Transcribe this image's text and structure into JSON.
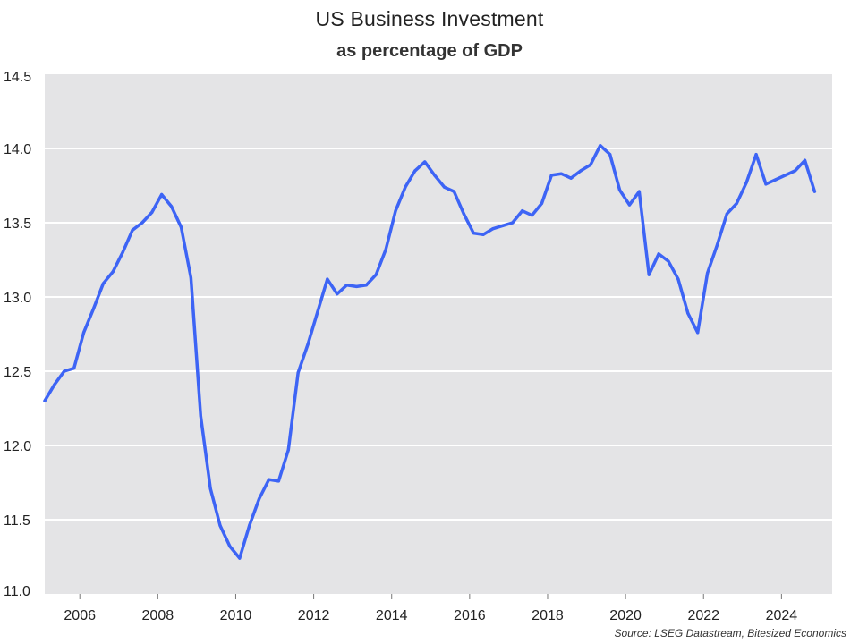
{
  "chart_data": {
    "type": "line",
    "title": "US Business Investment",
    "subtitle": "as percentage of GDP",
    "xlabel": "",
    "ylabel": "",
    "source": "Source: LSEG Datastream, Bitesized Economics",
    "ylim": [
      11.0,
      14.5
    ],
    "xlim": [
      2005.1,
      2025.3
    ],
    "yticks": [
      11.0,
      11.5,
      12.0,
      12.5,
      13.0,
      13.5,
      14.0,
      14.5
    ],
    "ytick_labels": [
      "11.0",
      "11.5",
      "12.0",
      "12.5",
      "13.0",
      "13.5",
      "14.0",
      "14.5"
    ],
    "xticks": [
      2006,
      2008,
      2010,
      2012,
      2014,
      2016,
      2018,
      2020,
      2022,
      2024
    ],
    "xtick_labels": [
      "2006",
      "2008",
      "2010",
      "2012",
      "2014",
      "2016",
      "2018",
      "2020",
      "2022",
      "2024"
    ],
    "grid": true,
    "background": "#e4e4e6",
    "line_color": "#3d64f5",
    "series": [
      {
        "x": [
          2005.1,
          2005.35,
          2005.6,
          2005.85,
          2006.1,
          2006.35,
          2006.6,
          2006.85,
          2007.1,
          2007.35,
          2007.6,
          2007.85,
          2008.1,
          2008.35,
          2008.6,
          2008.85,
          2009.1,
          2009.35,
          2009.6,
          2009.85,
          2010.1,
          2010.35,
          2010.6,
          2010.85,
          2011.1,
          2011.35,
          2011.6,
          2011.85,
          2012.1,
          2012.35,
          2012.6,
          2012.85,
          2013.1,
          2013.35,
          2013.6,
          2013.85,
          2014.1,
          2014.35,
          2014.6,
          2014.85,
          2015.1,
          2015.35,
          2015.6,
          2015.85,
          2016.1,
          2016.35,
          2016.6,
          2016.85,
          2017.1,
          2017.35,
          2017.6,
          2017.85,
          2018.1,
          2018.35,
          2018.6,
          2018.85,
          2019.1,
          2019.35,
          2019.6,
          2019.85,
          2020.1,
          2020.35,
          2020.6,
          2020.85,
          2021.1,
          2021.35,
          2021.6,
          2021.85,
          2022.1,
          2022.35,
          2022.6,
          2022.85,
          2023.1,
          2023.35,
          2023.6,
          2023.85,
          2024.1,
          2024.35,
          2024.6,
          2024.85
        ],
        "values": [
          12.3,
          12.41,
          12.5,
          12.52,
          12.76,
          12.92,
          13.09,
          13.17,
          13.3,
          13.45,
          13.5,
          13.57,
          13.69,
          13.61,
          13.47,
          13.13,
          12.2,
          11.71,
          11.46,
          11.32,
          11.24,
          11.46,
          11.64,
          11.77,
          11.76,
          11.97,
          12.49,
          12.68,
          12.9,
          13.12,
          13.02,
          13.08,
          13.07,
          13.08,
          13.15,
          13.32,
          13.58,
          13.74,
          13.85,
          13.91,
          13.82,
          13.74,
          13.71,
          13.56,
          13.43,
          13.42,
          13.46,
          13.48,
          13.5,
          13.58,
          13.55,
          13.63,
          13.82,
          13.83,
          13.8,
          13.85,
          13.89,
          14.02,
          13.96,
          13.72,
          13.62,
          13.71,
          13.15,
          13.29,
          13.24,
          13.12,
          12.89,
          12.76,
          13.16,
          13.35,
          13.56,
          13.63,
          13.77,
          13.96,
          13.76,
          13.79,
          13.82,
          13.85,
          13.92,
          13.71
        ]
      }
    ]
  }
}
